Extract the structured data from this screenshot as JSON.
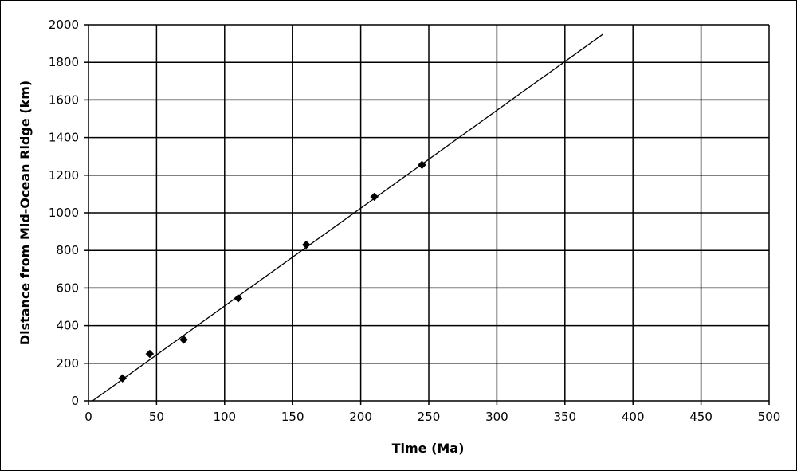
{
  "chart_data": {
    "type": "scatter",
    "title": "",
    "xlabel": "Time (Ma)",
    "ylabel": "Distance from Mid-Ocean Ridge (km)",
    "xlim": [
      0,
      500
    ],
    "ylim": [
      0,
      2000
    ],
    "x_ticks": [
      0,
      50,
      100,
      150,
      200,
      250,
      300,
      350,
      400,
      450,
      500
    ],
    "y_ticks": [
      0,
      200,
      400,
      600,
      800,
      1000,
      1200,
      1400,
      1600,
      1800,
      2000
    ],
    "grid": true,
    "legend": "none",
    "series": [
      {
        "marker": "diamond",
        "color": "#000000",
        "points": [
          {
            "x": 25,
            "y": 120
          },
          {
            "x": 45,
            "y": 250
          },
          {
            "x": 70,
            "y": 325
          },
          {
            "x": 110,
            "y": 545
          },
          {
            "x": 160,
            "y": 830
          },
          {
            "x": 210,
            "y": 1085
          },
          {
            "x": 245,
            "y": 1255
          }
        ]
      }
    ],
    "trendline": {
      "type": "linear",
      "color": "#000000",
      "start": {
        "x": 3,
        "y": 0
      },
      "end": {
        "x": 378,
        "y": 1950
      }
    }
  }
}
